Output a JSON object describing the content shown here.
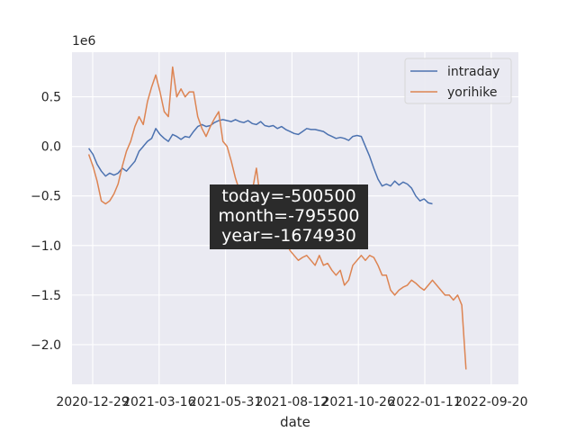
{
  "chart_data": {
    "type": "line",
    "xlabel": "date",
    "ylabel": "",
    "y_offset_label": "1e6",
    "x_tick_labels": [
      "2020-12-29",
      "2021-03-16",
      "2021-05-31",
      "2021-08-12",
      "2021-10-26",
      "2022-01-11",
      "2022-09-20"
    ],
    "y_ticks": [
      -2.0,
      -1.5,
      -1.0,
      -0.5,
      0.0,
      0.5
    ],
    "y_tick_labels": [
      "−2.0",
      "−1.5",
      "−1.0",
      "−0.5",
      "0.0",
      "0.5"
    ],
    "ylim": [
      -2.4,
      0.95
    ],
    "xlim": [
      -8,
      205
    ],
    "grid": true,
    "legend_placement": "upper right",
    "annotation": {
      "lines": [
        "today=-500500",
        "month=-795500",
        "year=-1674930"
      ]
    },
    "series": [
      {
        "name": "intraday",
        "color": "#4c72b0",
        "points": [
          [
            0,
            -0.02
          ],
          [
            2,
            -0.08
          ],
          [
            4,
            -0.18
          ],
          [
            6,
            -0.25
          ],
          [
            8,
            -0.3
          ],
          [
            10,
            -0.27
          ],
          [
            12,
            -0.29
          ],
          [
            14,
            -0.27
          ],
          [
            16,
            -0.22
          ],
          [
            18,
            -0.25
          ],
          [
            20,
            -0.2
          ],
          [
            22,
            -0.15
          ],
          [
            24,
            -0.05
          ],
          [
            26,
            0.0
          ],
          [
            28,
            0.05
          ],
          [
            30,
            0.08
          ],
          [
            32,
            0.18
          ],
          [
            34,
            0.12
          ],
          [
            36,
            0.08
          ],
          [
            38,
            0.05
          ],
          [
            40,
            0.12
          ],
          [
            42,
            0.1
          ],
          [
            44,
            0.07
          ],
          [
            46,
            0.1
          ],
          [
            48,
            0.09
          ],
          [
            50,
            0.15
          ],
          [
            52,
            0.2
          ],
          [
            54,
            0.22
          ],
          [
            56,
            0.2
          ],
          [
            58,
            0.21
          ],
          [
            60,
            0.24
          ],
          [
            62,
            0.26
          ],
          [
            64,
            0.27
          ],
          [
            66,
            0.26
          ],
          [
            68,
            0.25
          ],
          [
            70,
            0.27
          ],
          [
            72,
            0.25
          ],
          [
            74,
            0.24
          ],
          [
            76,
            0.26
          ],
          [
            78,
            0.23
          ],
          [
            80,
            0.22
          ],
          [
            82,
            0.25
          ],
          [
            84,
            0.21
          ],
          [
            86,
            0.2
          ],
          [
            88,
            0.21
          ],
          [
            90,
            0.18
          ],
          [
            92,
            0.2
          ],
          [
            94,
            0.17
          ],
          [
            96,
            0.15
          ],
          [
            98,
            0.13
          ],
          [
            100,
            0.12
          ],
          [
            102,
            0.15
          ],
          [
            104,
            0.18
          ],
          [
            106,
            0.17
          ],
          [
            108,
            0.17
          ],
          [
            110,
            0.16
          ],
          [
            112,
            0.15
          ],
          [
            114,
            0.12
          ],
          [
            116,
            0.1
          ],
          [
            118,
            0.08
          ],
          [
            120,
            0.09
          ],
          [
            122,
            0.08
          ],
          [
            124,
            0.06
          ],
          [
            126,
            0.1
          ],
          [
            128,
            0.11
          ],
          [
            130,
            0.1
          ],
          [
            132,
            0.0
          ],
          [
            134,
            -0.1
          ],
          [
            136,
            -0.22
          ],
          [
            138,
            -0.33
          ],
          [
            140,
            -0.4
          ],
          [
            142,
            -0.38
          ],
          [
            144,
            -0.4
          ],
          [
            146,
            -0.35
          ],
          [
            148,
            -0.39
          ],
          [
            150,
            -0.36
          ],
          [
            152,
            -0.38
          ],
          [
            154,
            -0.42
          ],
          [
            156,
            -0.5
          ],
          [
            158,
            -0.55
          ],
          [
            160,
            -0.53
          ],
          [
            162,
            -0.57
          ],
          [
            164,
            -0.58
          ]
        ]
      },
      {
        "name": "yorihike",
        "color": "#dd8452",
        "points": [
          [
            0,
            -0.08
          ],
          [
            2,
            -0.2
          ],
          [
            4,
            -0.35
          ],
          [
            6,
            -0.55
          ],
          [
            8,
            -0.58
          ],
          [
            10,
            -0.55
          ],
          [
            12,
            -0.48
          ],
          [
            14,
            -0.38
          ],
          [
            16,
            -0.2
          ],
          [
            18,
            -0.05
          ],
          [
            20,
            0.05
          ],
          [
            22,
            0.2
          ],
          [
            24,
            0.3
          ],
          [
            26,
            0.22
          ],
          [
            28,
            0.45
          ],
          [
            30,
            0.6
          ],
          [
            32,
            0.72
          ],
          [
            34,
            0.55
          ],
          [
            36,
            0.35
          ],
          [
            38,
            0.3
          ],
          [
            40,
            0.8
          ],
          [
            42,
            0.5
          ],
          [
            44,
            0.58
          ],
          [
            46,
            0.5
          ],
          [
            48,
            0.55
          ],
          [
            50,
            0.55
          ],
          [
            52,
            0.3
          ],
          [
            54,
            0.18
          ],
          [
            56,
            0.1
          ],
          [
            58,
            0.2
          ],
          [
            60,
            0.28
          ],
          [
            62,
            0.35
          ],
          [
            64,
            0.05
          ],
          [
            66,
            0.0
          ],
          [
            68,
            -0.15
          ],
          [
            70,
            -0.32
          ],
          [
            72,
            -0.45
          ],
          [
            74,
            -0.55
          ],
          [
            76,
            -0.6
          ],
          [
            78,
            -0.45
          ],
          [
            80,
            -0.22
          ],
          [
            82,
            -0.55
          ],
          [
            84,
            -0.75
          ],
          [
            86,
            -0.85
          ],
          [
            88,
            -0.8
          ],
          [
            90,
            -0.9
          ],
          [
            92,
            -1.0
          ],
          [
            94,
            -0.95
          ],
          [
            96,
            -1.05
          ],
          [
            98,
            -1.1
          ],
          [
            100,
            -1.15
          ],
          [
            102,
            -1.12
          ],
          [
            104,
            -1.1
          ],
          [
            106,
            -1.15
          ],
          [
            108,
            -1.2
          ],
          [
            110,
            -1.1
          ],
          [
            112,
            -1.2
          ],
          [
            114,
            -1.18
          ],
          [
            116,
            -1.25
          ],
          [
            118,
            -1.3
          ],
          [
            120,
            -1.25
          ],
          [
            122,
            -1.4
          ],
          [
            124,
            -1.35
          ],
          [
            126,
            -1.2
          ],
          [
            128,
            -1.15
          ],
          [
            130,
            -1.1
          ],
          [
            132,
            -1.15
          ],
          [
            134,
            -1.1
          ],
          [
            136,
            -1.12
          ],
          [
            138,
            -1.2
          ],
          [
            140,
            -1.3
          ],
          [
            142,
            -1.3
          ],
          [
            144,
            -1.45
          ],
          [
            146,
            -1.5
          ],
          [
            148,
            -1.45
          ],
          [
            150,
            -1.42
          ],
          [
            152,
            -1.4
          ],
          [
            154,
            -1.35
          ],
          [
            156,
            -1.38
          ],
          [
            158,
            -1.42
          ],
          [
            160,
            -1.45
          ],
          [
            162,
            -1.4
          ],
          [
            164,
            -1.35
          ],
          [
            166,
            -1.4
          ],
          [
            168,
            -1.45
          ],
          [
            170,
            -1.5
          ],
          [
            172,
            -1.5
          ],
          [
            174,
            -1.55
          ],
          [
            176,
            -1.5
          ],
          [
            178,
            -1.6
          ],
          [
            180,
            -2.25
          ]
        ]
      }
    ]
  }
}
